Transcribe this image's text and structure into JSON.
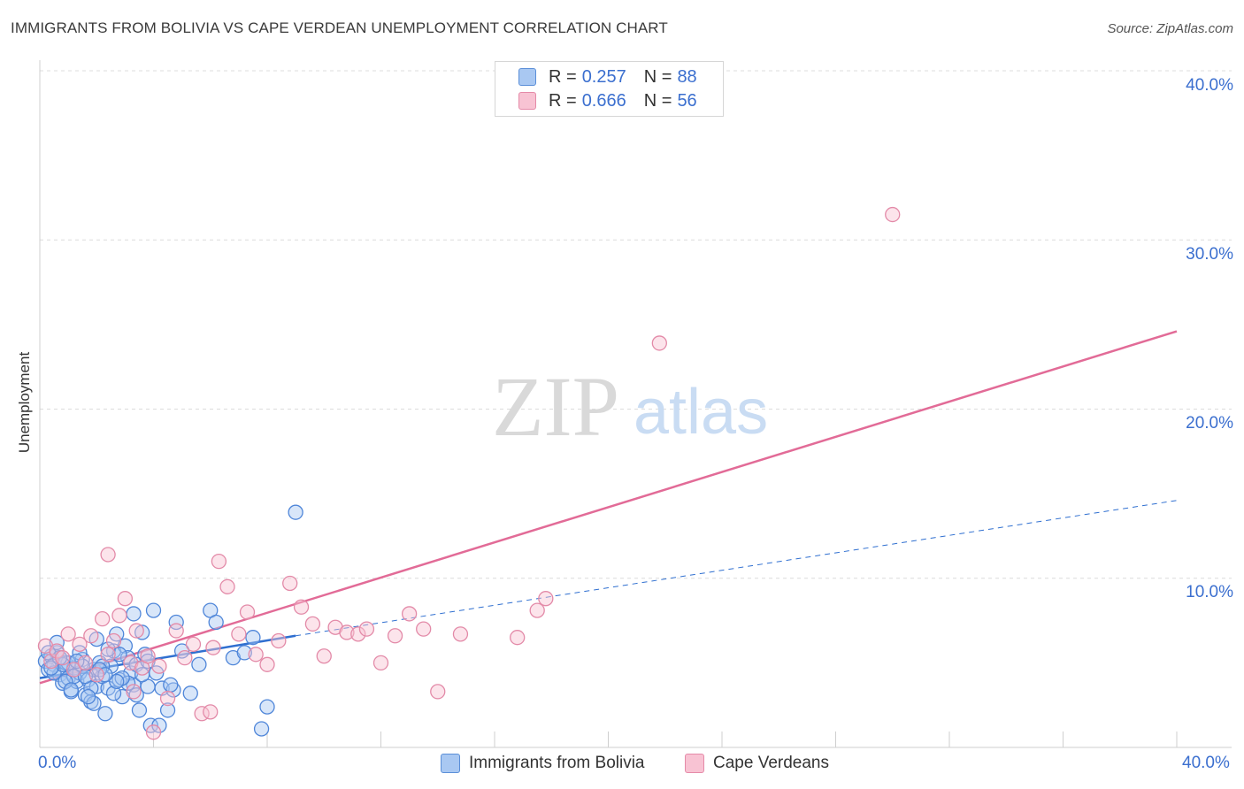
{
  "title": "IMMIGRANTS FROM BOLIVIA VS CAPE VERDEAN UNEMPLOYMENT CORRELATION CHART",
  "source": "Source: ZipAtlas.com",
  "watermark": {
    "zip": "ZIP",
    "atlas": "atlas"
  },
  "legend": {
    "rows": [
      {
        "r_label": "R =",
        "r_value": "0.257",
        "n_label": "N =",
        "n_value": "88",
        "color": "#a9c8f2",
        "border": "#5b8fd8"
      },
      {
        "r_label": "R =",
        "r_value": "0.666",
        "n_label": "N =",
        "n_value": "56",
        "color": "#f8c3d3",
        "border": "#e58aa8"
      }
    ]
  },
  "colors": {
    "blue_fill": "#a9c8f2",
    "blue_stroke": "#4f86d9",
    "blue_line": "#2f6fd0",
    "pink_fill": "#f8c3d3",
    "pink_stroke": "#e38aa8",
    "pink_line": "#e26b97",
    "axis_text": "#3b6fcf"
  },
  "chart_data": {
    "type": "scatter",
    "title": "IMMIGRANTS FROM BOLIVIA VS CAPE VERDEAN UNEMPLOYMENT CORRELATION CHART",
    "xlabel": "",
    "ylabel": "Unemployment",
    "xlim": [
      0,
      40
    ],
    "ylim": [
      0,
      40
    ],
    "x_tick_labels": [
      "0.0%",
      "40.0%"
    ],
    "y_tick_labels": [
      "10.0%",
      "20.0%",
      "30.0%",
      "40.0%"
    ],
    "y_ticks": [
      10,
      20,
      30,
      40
    ],
    "grid": true,
    "legend_position": "top-center",
    "series": [
      {
        "name": "Immigrants from Bolivia",
        "color": "#a9c8f2",
        "points": [
          [
            0.2,
            5.1
          ],
          [
            0.3,
            4.6
          ],
          [
            0.4,
            5.4
          ],
          [
            0.5,
            4.9
          ],
          [
            0.6,
            5.6
          ],
          [
            0.7,
            4.3
          ],
          [
            0.8,
            3.8
          ],
          [
            0.9,
            5.0
          ],
          [
            1.0,
            4.1
          ],
          [
            1.1,
            3.3
          ],
          [
            1.2,
            4.7
          ],
          [
            1.3,
            3.9
          ],
          [
            1.4,
            4.4
          ],
          [
            1.5,
            5.2
          ],
          [
            1.6,
            3.1
          ],
          [
            1.7,
            4.0
          ],
          [
            1.8,
            2.7
          ],
          [
            1.9,
            4.6
          ],
          [
            2.0,
            3.6
          ],
          [
            2.1,
            5.0
          ],
          [
            2.2,
            4.2
          ],
          [
            2.3,
            2.0
          ],
          [
            2.4,
            3.5
          ],
          [
            2.5,
            4.8
          ],
          [
            2.6,
            5.7
          ],
          [
            2.7,
            6.7
          ],
          [
            2.8,
            4.0
          ],
          [
            2.9,
            3.0
          ],
          [
            3.0,
            6.0
          ],
          [
            3.1,
            5.3
          ],
          [
            3.2,
            4.4
          ],
          [
            3.3,
            3.7
          ],
          [
            3.4,
            4.9
          ],
          [
            3.5,
            2.2
          ],
          [
            3.6,
            6.8
          ],
          [
            3.7,
            5.5
          ],
          [
            3.8,
            3.6
          ],
          [
            3.9,
            1.3
          ],
          [
            4.0,
            8.1
          ],
          [
            4.1,
            4.4
          ],
          [
            4.3,
            3.5
          ],
          [
            4.5,
            2.2
          ],
          [
            4.7,
            3.4
          ],
          [
            5.0,
            5.7
          ],
          [
            5.3,
            3.2
          ],
          [
            4.8,
            7.4
          ],
          [
            5.6,
            4.9
          ],
          [
            6.0,
            8.1
          ],
          [
            6.2,
            7.4
          ],
          [
            6.8,
            5.3
          ],
          [
            7.2,
            5.6
          ],
          [
            7.5,
            6.5
          ],
          [
            7.8,
            1.1
          ],
          [
            8.0,
            2.4
          ],
          [
            3.3,
            7.9
          ],
          [
            2.0,
            6.4
          ],
          [
            1.5,
            4.8
          ],
          [
            0.6,
            6.2
          ],
          [
            1.0,
            5.0
          ],
          [
            1.2,
            4.2
          ],
          [
            2.8,
            5.5
          ],
          [
            3.6,
            4.3
          ],
          [
            0.9,
            3.9
          ],
          [
            1.8,
            3.5
          ],
          [
            2.2,
            4.8
          ],
          [
            2.6,
            3.2
          ],
          [
            1.4,
            5.6
          ],
          [
            0.5,
            4.4
          ],
          [
            0.3,
            5.6
          ],
          [
            3.1,
            3.8
          ],
          [
            1.6,
            4.2
          ],
          [
            2.4,
            5.8
          ],
          [
            4.6,
            3.7
          ],
          [
            1.1,
            3.4
          ],
          [
            1.9,
            2.6
          ],
          [
            0.8,
            4.9
          ],
          [
            2.1,
            4.6
          ],
          [
            2.9,
            4.1
          ],
          [
            3.4,
            3.1
          ],
          [
            1.3,
            5.1
          ],
          [
            0.4,
            4.7
          ],
          [
            2.7,
            3.9
          ],
          [
            3.8,
            5.1
          ],
          [
            1.7,
            3.0
          ],
          [
            0.7,
            5.3
          ],
          [
            2.3,
            4.3
          ],
          [
            9.0,
            13.9
          ],
          [
            4.2,
            1.3
          ]
        ]
      },
      {
        "name": "Cape Verdeans",
        "color": "#f8c3d3",
        "points": [
          [
            0.2,
            6.0
          ],
          [
            0.4,
            5.1
          ],
          [
            0.6,
            5.7
          ],
          [
            0.8,
            5.3
          ],
          [
            1.0,
            6.7
          ],
          [
            1.2,
            4.6
          ],
          [
            1.4,
            6.1
          ],
          [
            1.6,
            5.0
          ],
          [
            1.8,
            6.6
          ],
          [
            2.0,
            4.3
          ],
          [
            2.2,
            7.6
          ],
          [
            2.4,
            5.5
          ],
          [
            2.6,
            6.3
          ],
          [
            2.8,
            7.8
          ],
          [
            3.0,
            8.8
          ],
          [
            3.2,
            5.0
          ],
          [
            3.4,
            6.9
          ],
          [
            3.6,
            4.7
          ],
          [
            3.8,
            5.4
          ],
          [
            4.0,
            0.9
          ],
          [
            4.2,
            4.8
          ],
          [
            4.5,
            2.9
          ],
          [
            4.8,
            6.9
          ],
          [
            5.1,
            5.3
          ],
          [
            5.4,
            6.1
          ],
          [
            5.7,
            2.0
          ],
          [
            6.0,
            2.1
          ],
          [
            6.3,
            11.0
          ],
          [
            6.6,
            9.5
          ],
          [
            7.0,
            6.7
          ],
          [
            7.3,
            8.0
          ],
          [
            7.6,
            5.5
          ],
          [
            8.0,
            4.9
          ],
          [
            8.4,
            6.3
          ],
          [
            8.8,
            9.7
          ],
          [
            9.2,
            8.3
          ],
          [
            9.6,
            7.3
          ],
          [
            10.0,
            5.4
          ],
          [
            10.4,
            7.1
          ],
          [
            10.8,
            6.8
          ],
          [
            11.2,
            6.7
          ],
          [
            11.5,
            7.0
          ],
          [
            12.0,
            5.0
          ],
          [
            12.5,
            6.6
          ],
          [
            13.0,
            7.9
          ],
          [
            13.5,
            7.0
          ],
          [
            14.0,
            3.3
          ],
          [
            14.8,
            6.7
          ],
          [
            16.8,
            6.5
          ],
          [
            17.5,
            8.1
          ],
          [
            17.8,
            8.8
          ],
          [
            21.8,
            23.9
          ],
          [
            30.0,
            31.5
          ],
          [
            2.4,
            11.4
          ],
          [
            6.1,
            5.9
          ],
          [
            3.3,
            3.3
          ]
        ]
      }
    ],
    "trend_lines": [
      {
        "series": "Immigrants from Bolivia",
        "solid_from": [
          0,
          4.1
        ],
        "solid_to": [
          9.0,
          6.6
        ],
        "dashed_to": [
          40,
          14.6
        ]
      },
      {
        "series": "Cape Verdeans",
        "from": [
          0,
          3.8
        ],
        "to": [
          40,
          24.6
        ]
      }
    ]
  }
}
